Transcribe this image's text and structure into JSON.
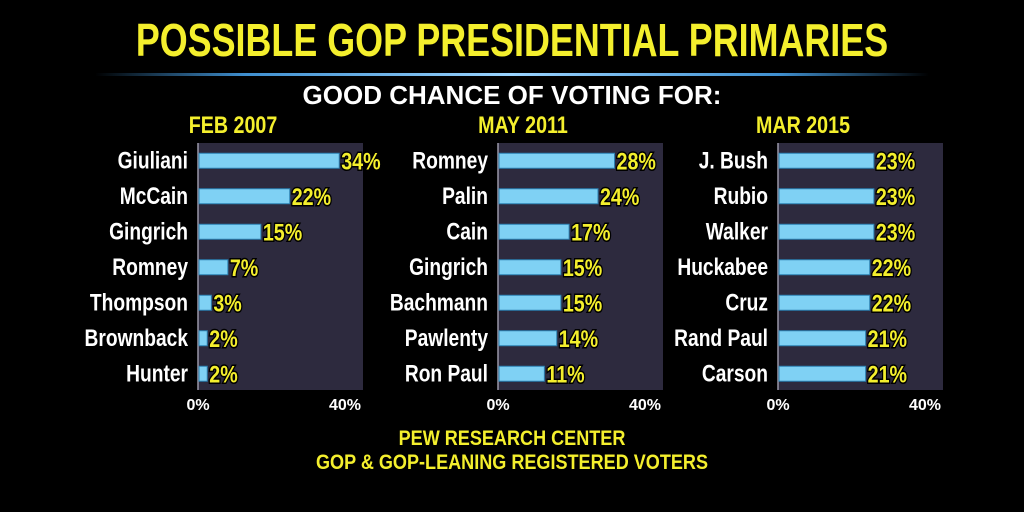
{
  "title": "POSSIBLE GOP PRESIDENTIAL PRIMARIES",
  "subtitle": "GOOD CHANCE OF VOTING FOR:",
  "footer": {
    "line1": "PEW RESEARCH CENTER",
    "line2": "GOP & GOP-LEANING REGISTERED VOTERS"
  },
  "colors": {
    "title": "#f4ef2d",
    "bar": "#7fd1f4",
    "panel_bg": "#2d2a3e",
    "value_label": "#f4ef2d"
  },
  "chart_data": [
    {
      "type": "bar",
      "orientation": "horizontal",
      "title": "FEB 2007",
      "categories": [
        "Giuliani",
        "McCain",
        "Gingrich",
        "Romney",
        "Thompson",
        "Brownback",
        "Hunter"
      ],
      "values": [
        34,
        22,
        15,
        7,
        3,
        2,
        2
      ],
      "value_labels": [
        "34%",
        "22%",
        "15%",
        "7%",
        "3%",
        "2%",
        "2%"
      ],
      "xlim": [
        0,
        40
      ],
      "xticks": [
        "0%",
        "40%"
      ]
    },
    {
      "type": "bar",
      "orientation": "horizontal",
      "title": "MAY 2011",
      "categories": [
        "Romney",
        "Palin",
        "Cain",
        "Gingrich",
        "Bachmann",
        "Pawlenty",
        "Ron Paul"
      ],
      "values": [
        28,
        24,
        17,
        15,
        15,
        14,
        11
      ],
      "value_labels": [
        "28%",
        "24%",
        "17%",
        "15%",
        "15%",
        "14%",
        "11%"
      ],
      "xlim": [
        0,
        40
      ],
      "xticks": [
        "0%",
        "40%"
      ]
    },
    {
      "type": "bar",
      "orientation": "horizontal",
      "title": "MAR 2015",
      "categories": [
        "J. Bush",
        "Rubio",
        "Walker",
        "Huckabee",
        "Cruz",
        "Rand Paul",
        "Carson"
      ],
      "values": [
        23,
        23,
        23,
        22,
        22,
        21,
        21
      ],
      "value_labels": [
        "23%",
        "23%",
        "23%",
        "22%",
        "22%",
        "21%",
        "21%"
      ],
      "xlim": [
        0,
        40
      ],
      "xticks": [
        "0%",
        "40%"
      ]
    }
  ]
}
